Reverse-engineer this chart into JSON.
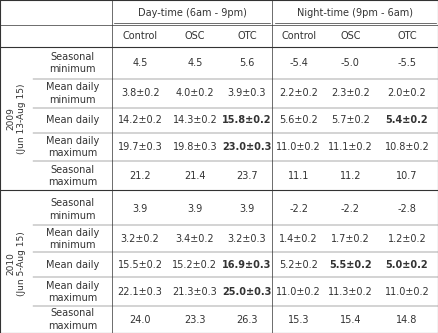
{
  "col_headers": [
    "Control",
    "OSC",
    "OTC",
    "Control",
    "OSC",
    "OTC"
  ],
  "row_labels_2009": [
    "Seasonal\nminimum",
    "Mean daily\nminimum",
    "Mean daily",
    "Mean daily\nmaximum",
    "Seasonal\nmaximum"
  ],
  "row_labels_2010": [
    "Seasonal\nminimum",
    "Mean daily\nminimum",
    "Mean daily",
    "Mean daily\nmaximum",
    "Seasonal\nmaximum"
  ],
  "data_2009": [
    [
      "4.5",
      "4.5",
      "5.6",
      "-5.4",
      "-5.0",
      "-5.5"
    ],
    [
      "3.8±0.2",
      "4.0±0.2",
      "3.9±0.3",
      "2.2±0.2",
      "2.3±0.2",
      "2.0±0.2"
    ],
    [
      "14.2±0.2",
      "14.3±0.2",
      "15.8±0.2",
      "5.6±0.2",
      "5.7±0.2",
      "5.4±0.2"
    ],
    [
      "19.7±0.3",
      "19.8±0.3",
      "23.0±0.3",
      "11.0±0.2",
      "11.1±0.2",
      "10.8±0.2"
    ],
    [
      "21.2",
      "21.4",
      "23.7",
      "11.1",
      "11.2",
      "10.7"
    ]
  ],
  "data_2010": [
    [
      "3.9",
      "3.9",
      "3.9",
      "-2.2",
      "-2.2",
      "-2.8"
    ],
    [
      "3.2±0.2",
      "3.4±0.2",
      "3.2±0.3",
      "1.4±0.2",
      "1.7±0.2",
      "1.2±0.2"
    ],
    [
      "15.5±0.2",
      "15.2±0.2",
      "16.9±0.3",
      "5.2±0.2",
      "5.5±0.2",
      "5.0±0.2"
    ],
    [
      "22.1±0.3",
      "21.3±0.3",
      "25.0±0.3",
      "11.0±0.2",
      "11.3±0.2",
      "11.0±0.2"
    ],
    [
      "24.0",
      "23.3",
      "26.3",
      "15.3",
      "15.4",
      "14.8"
    ]
  ],
  "bold_2009": [
    [
      false,
      false,
      false,
      false,
      false,
      false
    ],
    [
      false,
      false,
      false,
      false,
      false,
      false
    ],
    [
      false,
      false,
      true,
      false,
      false,
      true
    ],
    [
      false,
      false,
      true,
      false,
      false,
      false
    ],
    [
      false,
      false,
      false,
      false,
      false,
      false
    ]
  ],
  "bold_2010": [
    [
      false,
      false,
      false,
      false,
      false,
      false
    ],
    [
      false,
      false,
      false,
      false,
      false,
      false
    ],
    [
      false,
      false,
      true,
      false,
      true,
      true
    ],
    [
      false,
      false,
      true,
      false,
      false,
      false
    ],
    [
      false,
      false,
      false,
      false,
      false,
      false
    ]
  ],
  "year1": "2009",
  "year1_sub": "(Jun 13-Aug 15)",
  "year2": "2010",
  "year2_sub": "(Jun 5-Aug 15)",
  "day_header": "Day-time (6am - 9pm)",
  "night_header": "Night-time (9pm - 6am)",
  "bg_color": "#ffffff",
  "line_color": "#333333",
  "font_size": 7.0
}
